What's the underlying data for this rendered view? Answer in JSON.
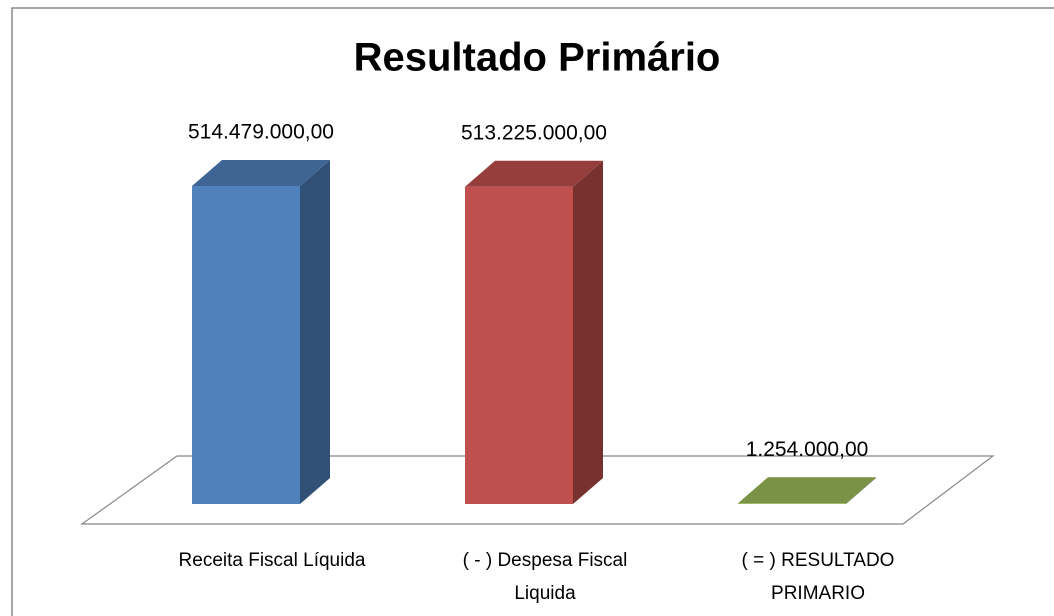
{
  "chart_data": {
    "type": "bar3d",
    "title": "Resultado Primário",
    "categories": [
      "Receita Fiscal Líquida",
      "( - ) Despesa Fiscal Liquida",
      "( = ) RESULTADO PRIMARIO"
    ],
    "values": [
      514479000,
      513225000,
      1254000
    ],
    "value_labels": [
      "514.479.000,00",
      "513.225.000,00",
      "1.254.000,00"
    ],
    "colors": [
      "#4f81bd",
      "#c0504d",
      "#9bbb59"
    ]
  }
}
